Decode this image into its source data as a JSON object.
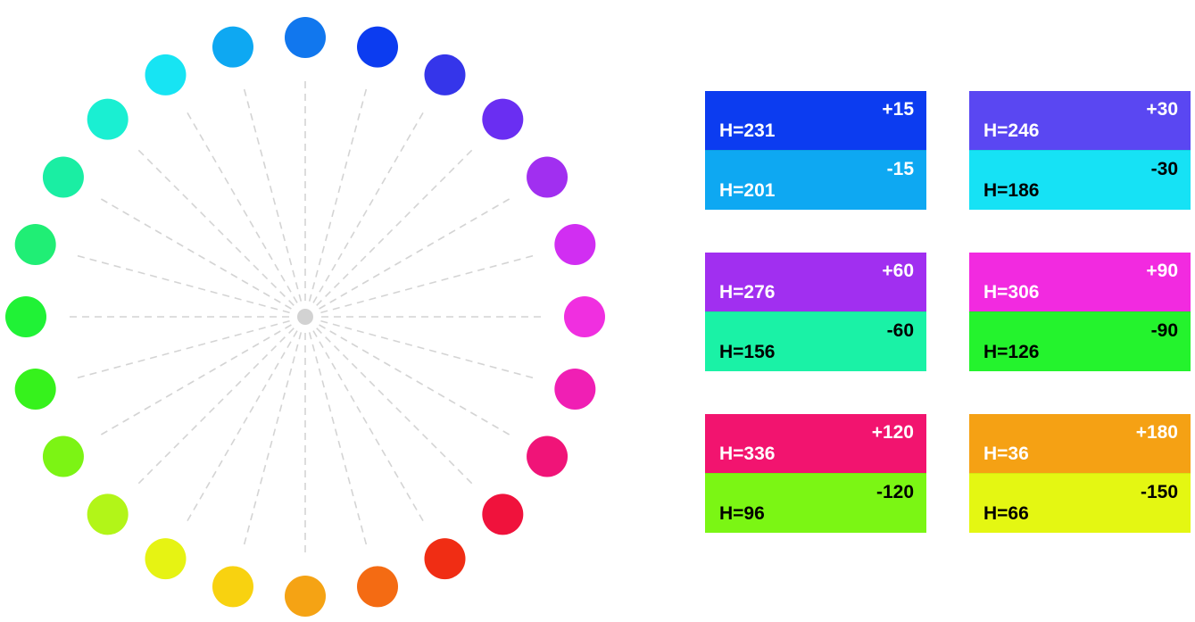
{
  "wheel": {
    "hues": [
      216,
      231,
      246,
      261,
      276,
      291,
      306,
      321,
      336,
      351,
      6,
      21,
      36,
      51,
      66,
      81,
      96,
      111,
      126,
      141,
      156,
      171,
      186,
      201
    ],
    "colors": [
      "#1177ee",
      "#0c3cf0",
      "#3535ea",
      "#6a2ef2",
      "#a12ff0",
      "#d12ef2",
      "#f02fe0",
      "#f01fb4",
      "#f01478",
      "#f0123c",
      "#f02d14",
      "#f46b13",
      "#f5a314",
      "#f8d210",
      "#e6f313",
      "#b2f518",
      "#7cf414",
      "#36f21c",
      "#20f236",
      "#20ee75",
      "#1aeea3",
      "#1aefd2",
      "#17e4f3",
      "#0ea8f2"
    ],
    "center_color": "#d2d2d2",
    "spoke_color": "#d4d4d4"
  },
  "panels": [
    {
      "top": {
        "delta": "+15",
        "hue": "H=231",
        "color": "#0c3cf0",
        "text": "#ffffff"
      },
      "bottom": {
        "delta": "-15",
        "hue": "H=201",
        "color": "#0ea8f2",
        "text": "#ffffff"
      }
    },
    {
      "top": {
        "delta": "+30",
        "hue": "H=246",
        "color": "#5a47f2",
        "text": "#ffffff"
      },
      "bottom": {
        "delta": "-30",
        "hue": "H=186",
        "color": "#16e2f5",
        "text": "#000000"
      }
    },
    {
      "top": {
        "delta": "+60",
        "hue": "H=276",
        "color": "#a12ff0",
        "text": "#ffffff"
      },
      "bottom": {
        "delta": "-60",
        "hue": "H=156",
        "color": "#1af2a6",
        "text": "#000000"
      }
    },
    {
      "top": {
        "delta": "+90",
        "hue": "H=306",
        "color": "#f22ae0",
        "text": "#ffffff"
      },
      "bottom": {
        "delta": "-90",
        "hue": "H=126",
        "color": "#24f32d",
        "text": "#000000"
      }
    },
    {
      "top": {
        "delta": "+120",
        "hue": "H=336",
        "color": "#f2146f",
        "text": "#ffffff"
      },
      "bottom": {
        "delta": "-120",
        "hue": "H=96",
        "color": "#7bf614",
        "text": "#000000"
      }
    },
    {
      "top": {
        "delta": "+180",
        "hue": "H=36",
        "color": "#f5a114",
        "text": "#ffffff"
      },
      "bottom": {
        "delta": "-150",
        "hue": "H=66",
        "color": "#e4f712",
        "text": "#000000"
      }
    }
  ]
}
